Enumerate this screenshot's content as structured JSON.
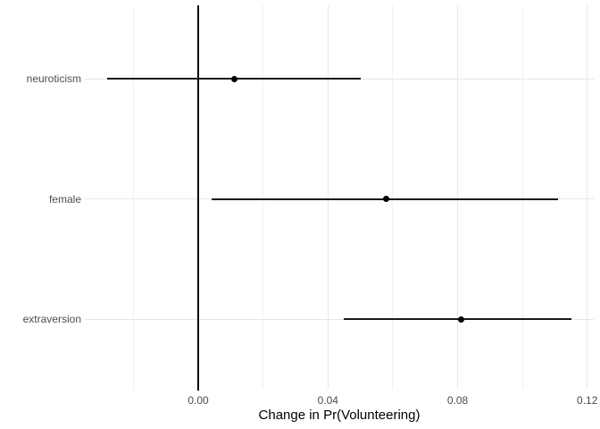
{
  "chart_data": {
    "type": "scatter",
    "subtype": "dot-whisker-coefficient-plot",
    "title": "",
    "xlabel": "Change in Pr(Volunteering)",
    "ylabel": "",
    "categories": [
      "neuroticism",
      "female",
      "extraversion"
    ],
    "series": [
      {
        "name": "estimate",
        "values": [
          0.011,
          0.058,
          0.081
        ]
      },
      {
        "name": "ci_lower",
        "values": [
          -0.028,
          0.004,
          0.045
        ]
      },
      {
        "name": "ci_upper",
        "values": [
          0.05,
          0.111,
          0.115
        ]
      }
    ],
    "xlim": [
      -0.035,
      0.122
    ],
    "x_major_ticks": [
      0,
      0.04,
      0.08,
      0.12
    ],
    "x_tick_labels": [
      "0.00",
      "0.04",
      "0.08",
      "0.12"
    ],
    "x_minor_ticks": [
      -0.02,
      0.02,
      0.06,
      0.1
    ],
    "reference_line_x": 0,
    "grid": {
      "major": true,
      "minor": true,
      "horizontal_rows": true
    },
    "legend_position": "none",
    "colors": {
      "background": "#ffffff",
      "grid_major": "#e7e7e7",
      "grid_minor": "#f1f1f1",
      "whisker": "#1a1a1a",
      "point": "#000000",
      "reference_line": "#000000",
      "axis_text": "#4d4d4d",
      "axis_title": "#000000"
    }
  }
}
